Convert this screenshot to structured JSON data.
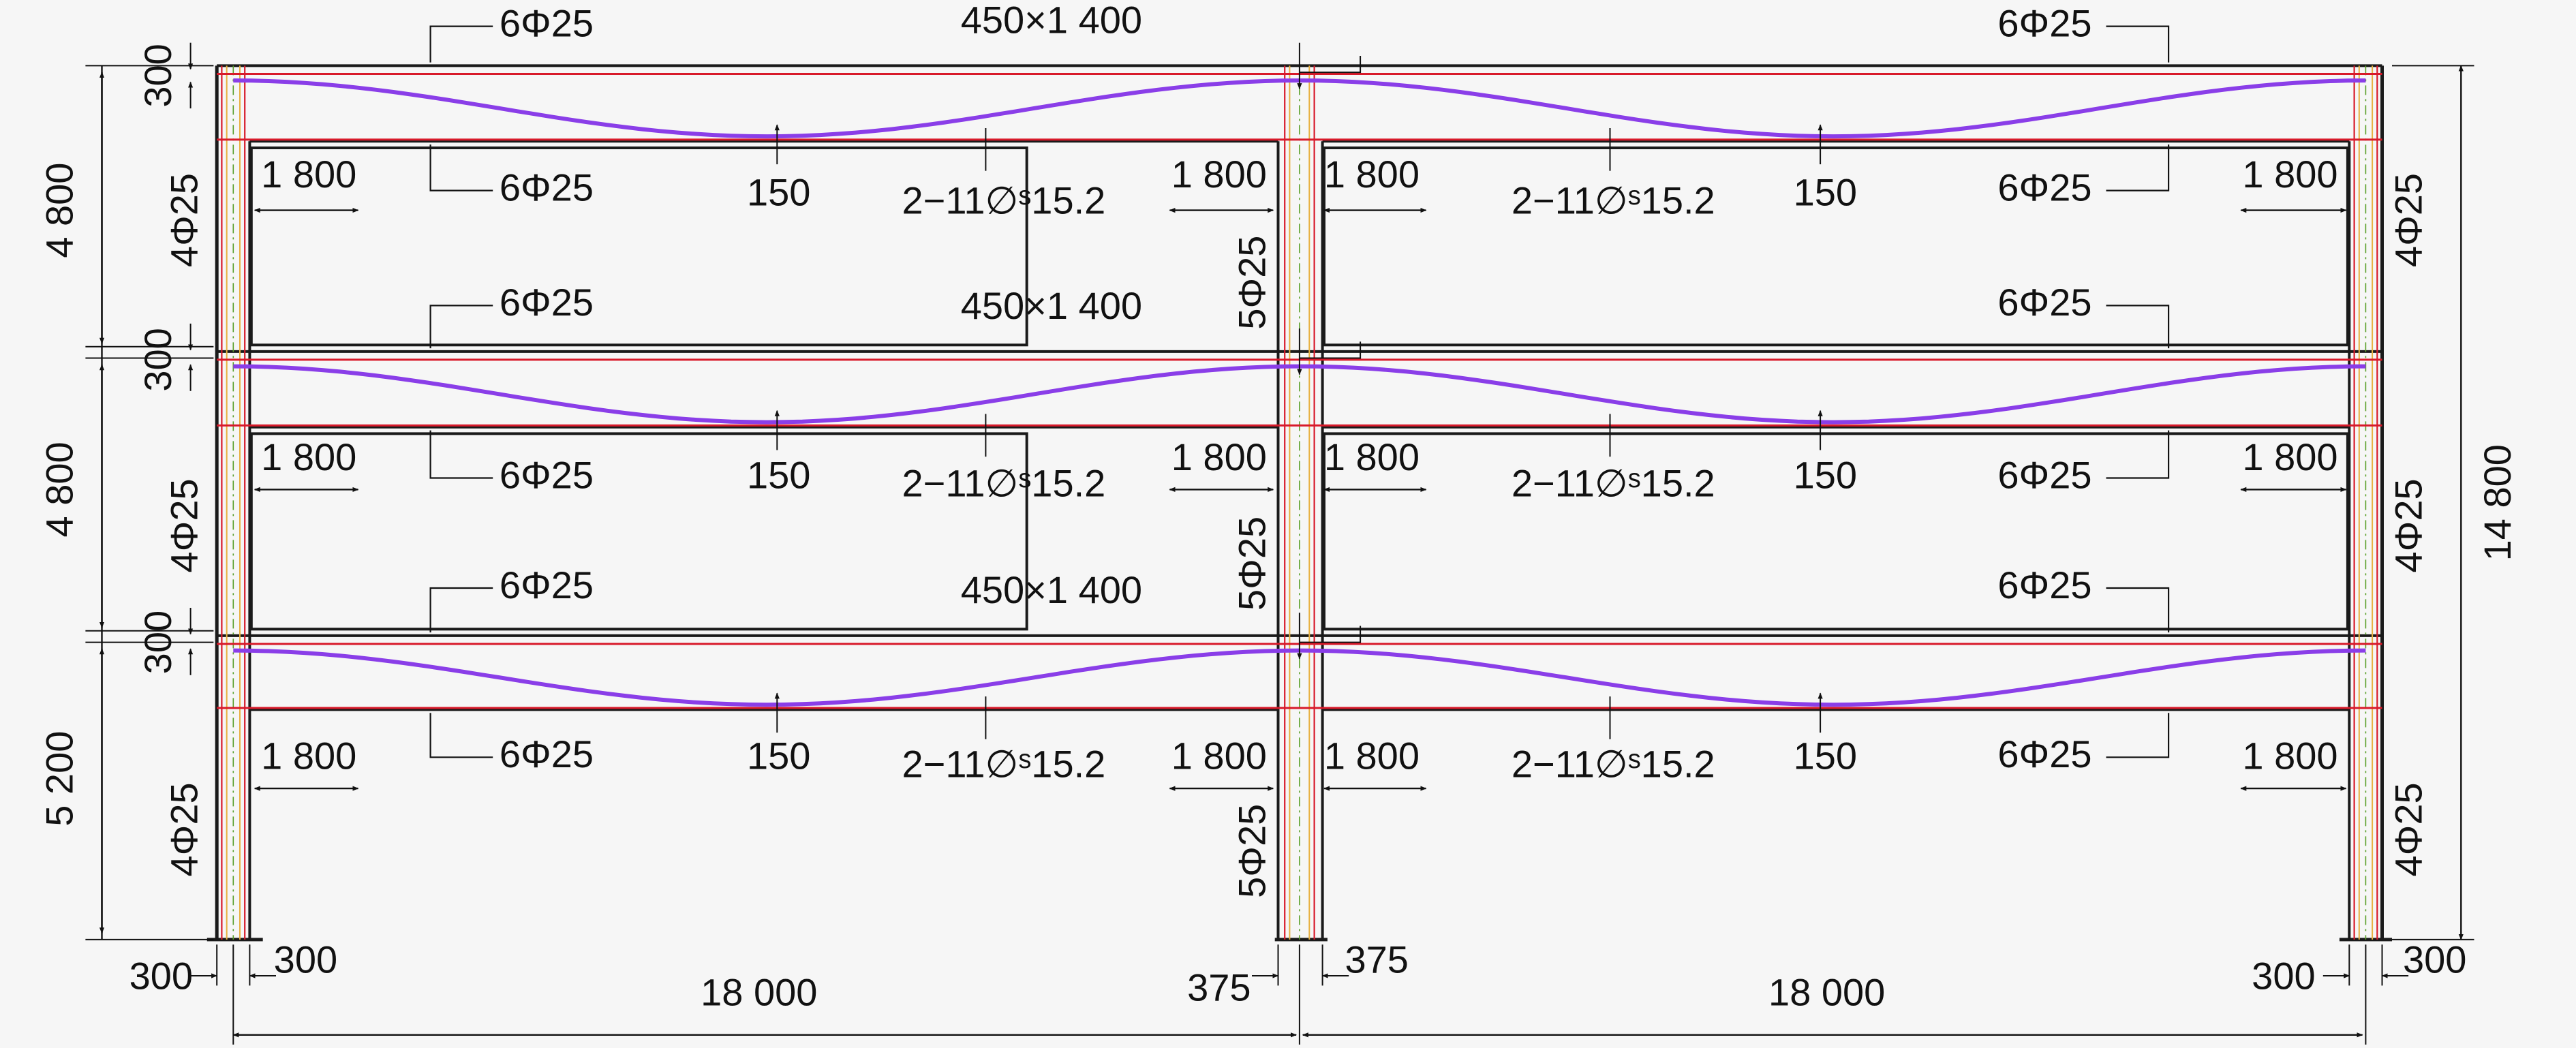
{
  "drawing": {
    "colors": {
      "background": "#f6f6f6",
      "concrete": "#1a1a1a",
      "rebar": "#d81a2a",
      "tendon": "#8a3ee8",
      "column_core": "#e8b040",
      "column_core_green": "#5aa02a",
      "dim": "#111111"
    },
    "beam_section": "450×1 400",
    "beam_top_rebar": "6Φ25",
    "beam_bottom_rebar": "6Φ25",
    "tendon_label": "2−11∅ˢ15.2",
    "tendon_low_point": "150",
    "column_rebar_side": "4Φ25",
    "column_rebar_mid": "5Φ25",
    "haunch_length": "1 800",
    "storey_heights": [
      "4 800",
      "4 800",
      "5 200"
    ],
    "slab_thickness": "300",
    "total_height": "14 800",
    "span": "18 000",
    "side_column_half": "300",
    "mid_column_half": "375"
  }
}
